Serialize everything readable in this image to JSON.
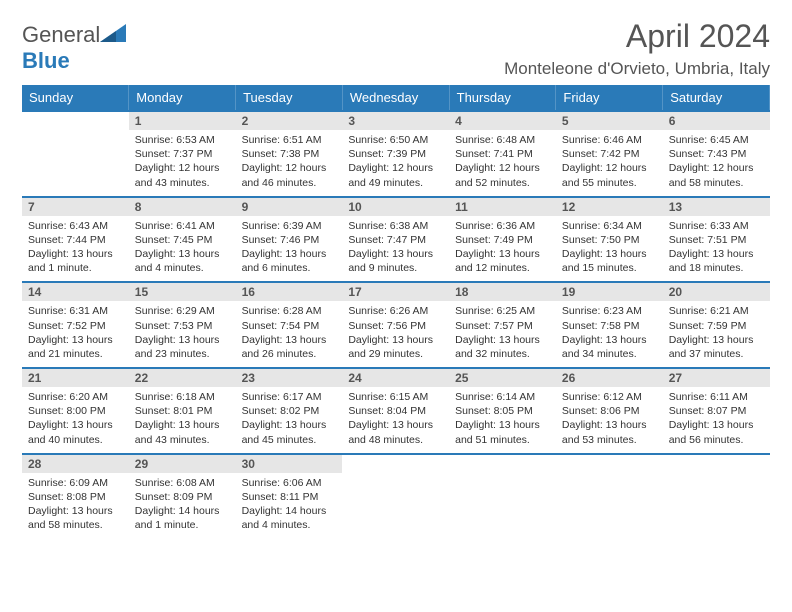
{
  "branding": {
    "text1": "General",
    "text2": "Blue"
  },
  "title": "April 2024",
  "location": "Monteleone d'Orvieto, Umbria, Italy",
  "colors": {
    "header_bg": "#2a7ab8",
    "daynum_bg": "#e6e6e6",
    "border_top": "#2a7ab8"
  },
  "day_headers": [
    "Sunday",
    "Monday",
    "Tuesday",
    "Wednesday",
    "Thursday",
    "Friday",
    "Saturday"
  ],
  "weeks": [
    [
      {
        "n": "",
        "d": ""
      },
      {
        "n": "1",
        "d": "Sunrise: 6:53 AM\nSunset: 7:37 PM\nDaylight: 12 hours and 43 minutes."
      },
      {
        "n": "2",
        "d": "Sunrise: 6:51 AM\nSunset: 7:38 PM\nDaylight: 12 hours and 46 minutes."
      },
      {
        "n": "3",
        "d": "Sunrise: 6:50 AM\nSunset: 7:39 PM\nDaylight: 12 hours and 49 minutes."
      },
      {
        "n": "4",
        "d": "Sunrise: 6:48 AM\nSunset: 7:41 PM\nDaylight: 12 hours and 52 minutes."
      },
      {
        "n": "5",
        "d": "Sunrise: 6:46 AM\nSunset: 7:42 PM\nDaylight: 12 hours and 55 minutes."
      },
      {
        "n": "6",
        "d": "Sunrise: 6:45 AM\nSunset: 7:43 PM\nDaylight: 12 hours and 58 minutes."
      }
    ],
    [
      {
        "n": "7",
        "d": "Sunrise: 6:43 AM\nSunset: 7:44 PM\nDaylight: 13 hours and 1 minute."
      },
      {
        "n": "8",
        "d": "Sunrise: 6:41 AM\nSunset: 7:45 PM\nDaylight: 13 hours and 4 minutes."
      },
      {
        "n": "9",
        "d": "Sunrise: 6:39 AM\nSunset: 7:46 PM\nDaylight: 13 hours and 6 minutes."
      },
      {
        "n": "10",
        "d": "Sunrise: 6:38 AM\nSunset: 7:47 PM\nDaylight: 13 hours and 9 minutes."
      },
      {
        "n": "11",
        "d": "Sunrise: 6:36 AM\nSunset: 7:49 PM\nDaylight: 13 hours and 12 minutes."
      },
      {
        "n": "12",
        "d": "Sunrise: 6:34 AM\nSunset: 7:50 PM\nDaylight: 13 hours and 15 minutes."
      },
      {
        "n": "13",
        "d": "Sunrise: 6:33 AM\nSunset: 7:51 PM\nDaylight: 13 hours and 18 minutes."
      }
    ],
    [
      {
        "n": "14",
        "d": "Sunrise: 6:31 AM\nSunset: 7:52 PM\nDaylight: 13 hours and 21 minutes."
      },
      {
        "n": "15",
        "d": "Sunrise: 6:29 AM\nSunset: 7:53 PM\nDaylight: 13 hours and 23 minutes."
      },
      {
        "n": "16",
        "d": "Sunrise: 6:28 AM\nSunset: 7:54 PM\nDaylight: 13 hours and 26 minutes."
      },
      {
        "n": "17",
        "d": "Sunrise: 6:26 AM\nSunset: 7:56 PM\nDaylight: 13 hours and 29 minutes."
      },
      {
        "n": "18",
        "d": "Sunrise: 6:25 AM\nSunset: 7:57 PM\nDaylight: 13 hours and 32 minutes."
      },
      {
        "n": "19",
        "d": "Sunrise: 6:23 AM\nSunset: 7:58 PM\nDaylight: 13 hours and 34 minutes."
      },
      {
        "n": "20",
        "d": "Sunrise: 6:21 AM\nSunset: 7:59 PM\nDaylight: 13 hours and 37 minutes."
      }
    ],
    [
      {
        "n": "21",
        "d": "Sunrise: 6:20 AM\nSunset: 8:00 PM\nDaylight: 13 hours and 40 minutes."
      },
      {
        "n": "22",
        "d": "Sunrise: 6:18 AM\nSunset: 8:01 PM\nDaylight: 13 hours and 43 minutes."
      },
      {
        "n": "23",
        "d": "Sunrise: 6:17 AM\nSunset: 8:02 PM\nDaylight: 13 hours and 45 minutes."
      },
      {
        "n": "24",
        "d": "Sunrise: 6:15 AM\nSunset: 8:04 PM\nDaylight: 13 hours and 48 minutes."
      },
      {
        "n": "25",
        "d": "Sunrise: 6:14 AM\nSunset: 8:05 PM\nDaylight: 13 hours and 51 minutes."
      },
      {
        "n": "26",
        "d": "Sunrise: 6:12 AM\nSunset: 8:06 PM\nDaylight: 13 hours and 53 minutes."
      },
      {
        "n": "27",
        "d": "Sunrise: 6:11 AM\nSunset: 8:07 PM\nDaylight: 13 hours and 56 minutes."
      }
    ],
    [
      {
        "n": "28",
        "d": "Sunrise: 6:09 AM\nSunset: 8:08 PM\nDaylight: 13 hours and 58 minutes."
      },
      {
        "n": "29",
        "d": "Sunrise: 6:08 AM\nSunset: 8:09 PM\nDaylight: 14 hours and 1 minute."
      },
      {
        "n": "30",
        "d": "Sunrise: 6:06 AM\nSunset: 8:11 PM\nDaylight: 14 hours and 4 minutes."
      },
      {
        "n": "",
        "d": ""
      },
      {
        "n": "",
        "d": ""
      },
      {
        "n": "",
        "d": ""
      },
      {
        "n": "",
        "d": ""
      }
    ]
  ]
}
